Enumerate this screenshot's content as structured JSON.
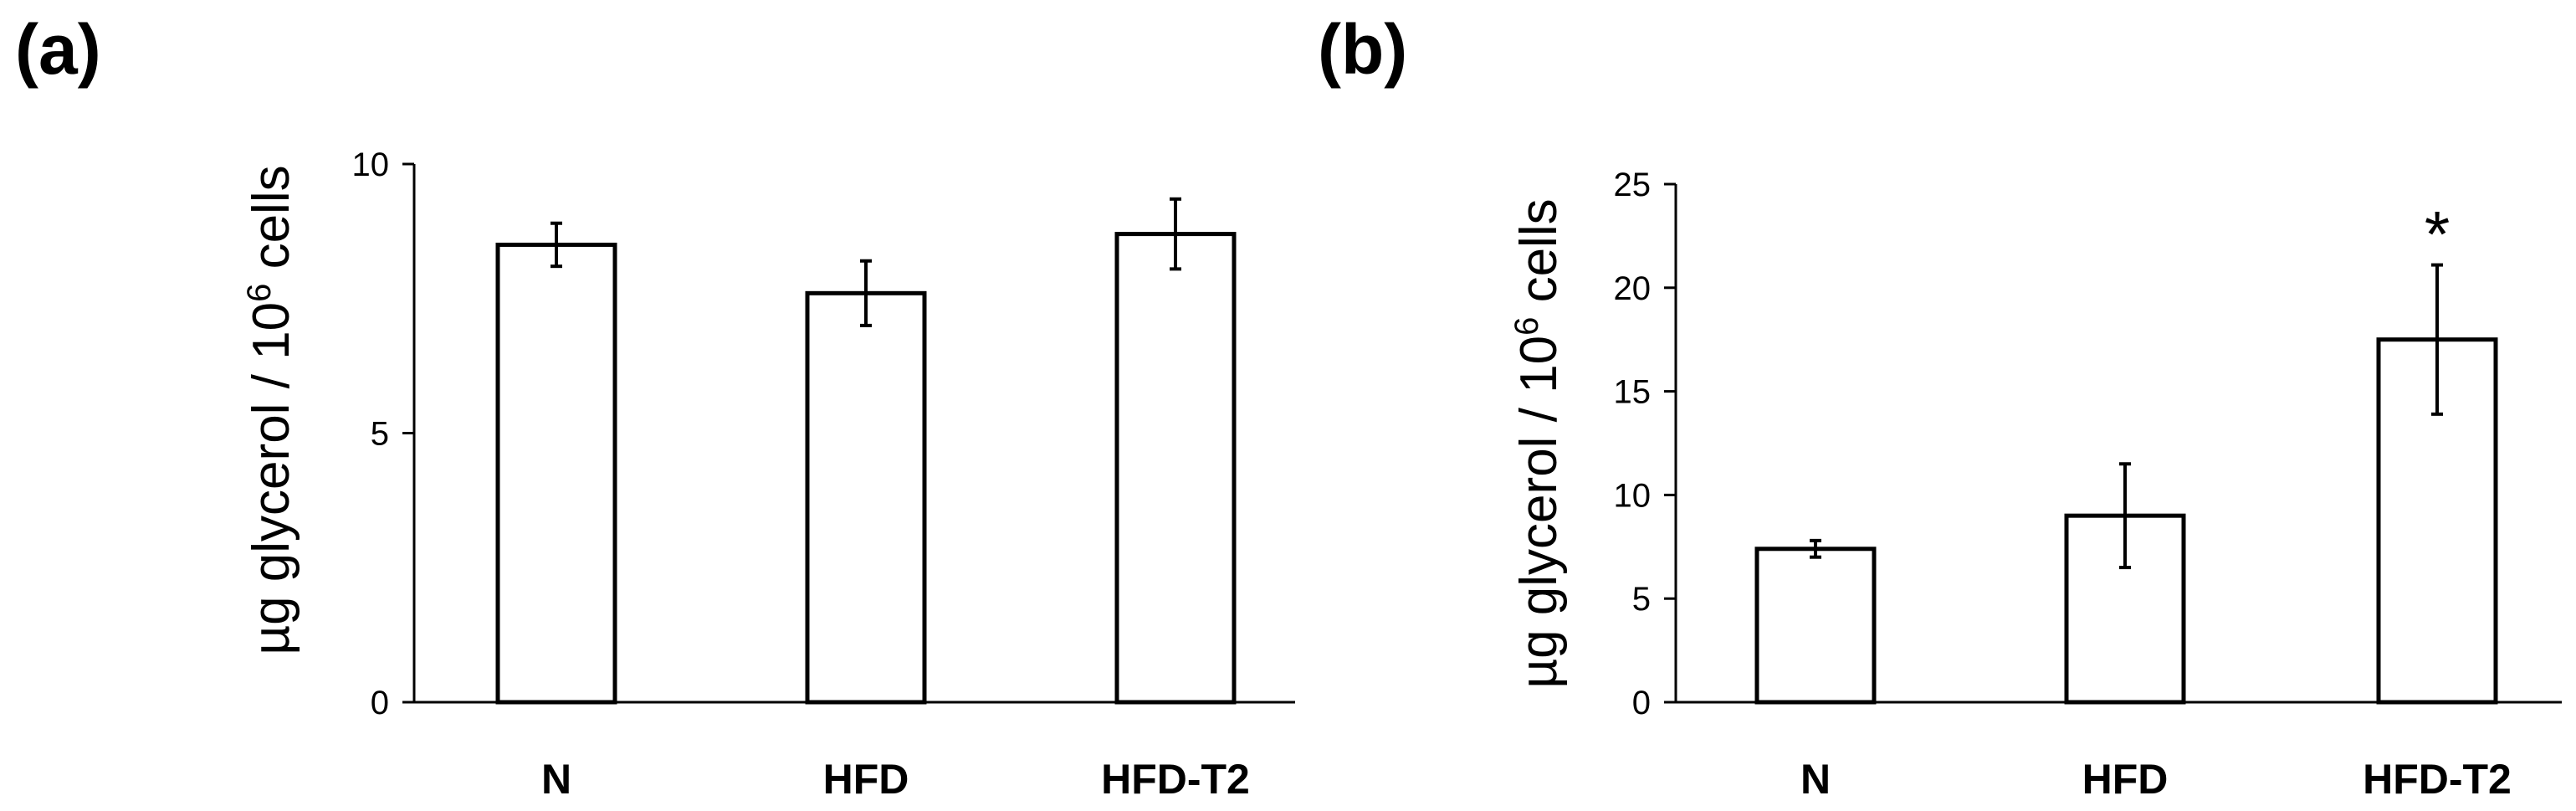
{
  "chart_data": [
    {
      "type": "bar",
      "panel_label": "(a)",
      "ylabel": "µg glycerol / 10",
      "ylabel_superscript": "6",
      "ylabel_suffix": " cells",
      "categories": [
        "N",
        "HFD",
        "HFD-T2"
      ],
      "values": [
        8.5,
        7.6,
        8.7
      ],
      "errors": [
        0.4,
        0.6,
        0.65
      ],
      "ylim": [
        0,
        10
      ],
      "yticks": [
        0,
        5,
        10
      ],
      "ytick_labels": [
        "0",
        "5",
        "10"
      ],
      "annotations": [
        "",
        "",
        ""
      ],
      "grid": false,
      "bar_color": "#ffffff",
      "edge_color": "#000000"
    },
    {
      "type": "bar",
      "panel_label": "(b)",
      "ylabel": "µg glycerol / 10",
      "ylabel_superscript": "6",
      "ylabel_suffix": " cells",
      "categories": [
        "N",
        "HFD",
        "HFD-T2"
      ],
      "values": [
        7.4,
        9.0,
        17.5
      ],
      "errors": [
        0.4,
        2.5,
        3.6
      ],
      "ylim": [
        0,
        25
      ],
      "yticks": [
        0,
        5,
        10,
        15,
        20,
        25
      ],
      "ytick_labels": [
        "0",
        "5",
        "10",
        "15",
        "20",
        "25"
      ],
      "annotations": [
        "",
        "",
        "*"
      ],
      "grid": false,
      "bar_color": "#ffffff",
      "edge_color": "#000000"
    }
  ]
}
